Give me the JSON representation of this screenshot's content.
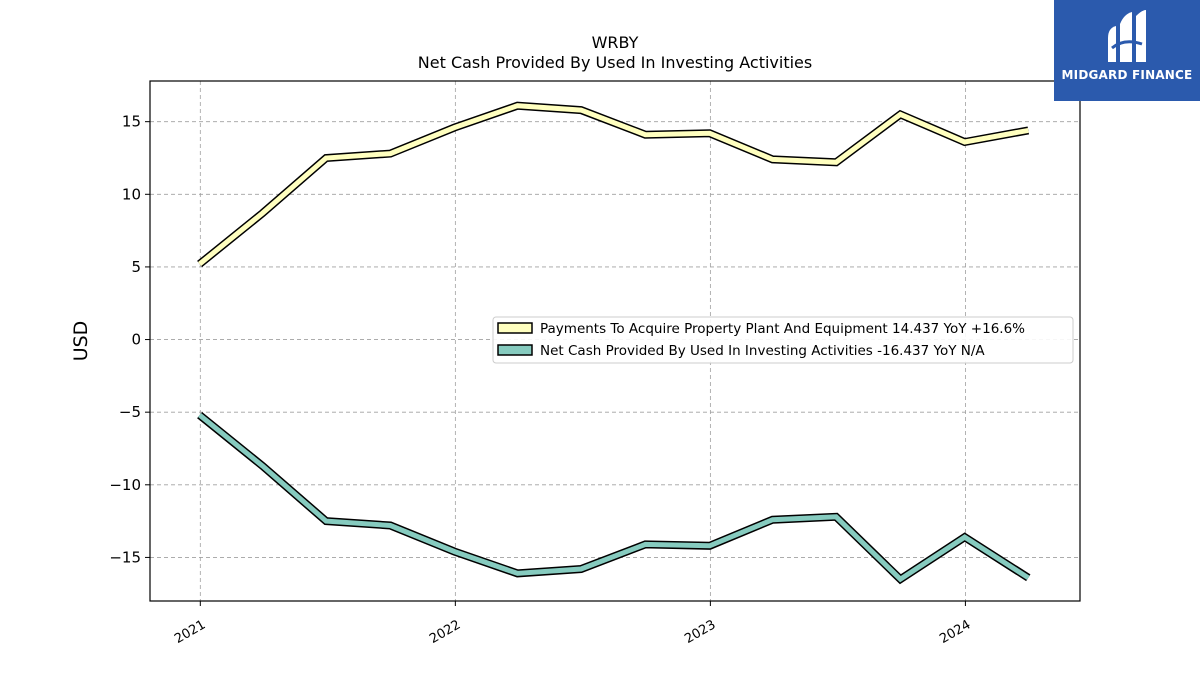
{
  "brand": {
    "name": "MIDGARD FINANCE",
    "bg_color": "#2b5aad",
    "icon": "midgard-logo-icon"
  },
  "chart_data": {
    "type": "line",
    "title": "WRBY",
    "subtitle": "Net Cash Provided By Used In Investing Activities",
    "ylabel": "USD",
    "xlabel": "",
    "ylim": [
      -18,
      17.8
    ],
    "xlim": [
      "2020-10-21",
      "2024-06-13"
    ],
    "yticks": [
      {
        "value": 15,
        "label": "15"
      },
      {
        "value": 10,
        "label": "10"
      },
      {
        "value": 5,
        "label": "5"
      },
      {
        "value": 0,
        "label": "0"
      },
      {
        "value": -5,
        "label": "−5"
      },
      {
        "value": -10,
        "label": "−10"
      },
      {
        "value": -15,
        "label": "−15"
      }
    ],
    "xticks": [
      {
        "value": "2021-01-01",
        "label": "2021"
      },
      {
        "value": "2022-01-01",
        "label": "2022"
      },
      {
        "value": "2023-01-01",
        "label": "2023"
      },
      {
        "value": "2024-01-01",
        "label": "2024"
      }
    ],
    "grid": true,
    "legend_position": "center-right",
    "x": [
      "2020-12-31",
      "2021-03-31",
      "2021-06-30",
      "2021-09-30",
      "2021-12-31",
      "2022-03-31",
      "2022-06-30",
      "2022-09-30",
      "2022-12-31",
      "2023-03-31",
      "2023-06-30",
      "2023-09-30",
      "2023-12-31",
      "2024-03-31"
    ],
    "series": [
      {
        "name": "Payments To Acquire Property Plant And Equipment  14.437 YoY +16.6%",
        "color": "#ffffbf",
        "values": [
          5.2,
          8.7,
          12.5,
          12.8,
          14.6,
          16.1,
          15.8,
          14.1,
          14.2,
          12.4,
          12.2,
          15.5,
          13.6,
          14.4
        ]
      },
      {
        "name": "Net Cash Provided By Used In Investing Activities  -16.437 YoY N/A",
        "color": "#86cbbf",
        "values": [
          -5.2,
          -8.7,
          -12.5,
          -12.8,
          -14.6,
          -16.1,
          -15.8,
          -14.1,
          -14.2,
          -12.4,
          -12.2,
          -16.5,
          -13.6,
          -16.4
        ]
      }
    ]
  }
}
